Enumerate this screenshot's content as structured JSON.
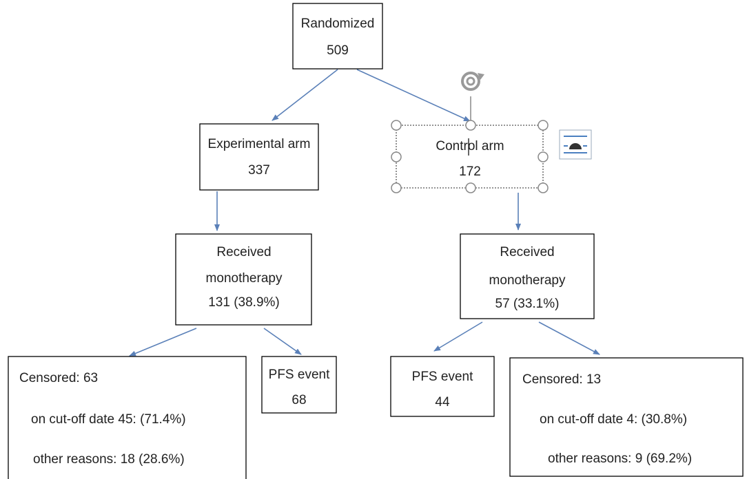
{
  "nodes": [
    {
      "lines": [
        "Randomized",
        "509"
      ]
    },
    {
      "lines": [
        "Experimental arm",
        "337"
      ]
    },
    {
      "lines": [
        "Control arm",
        "172"
      ]
    },
    {
      "lines": [
        "Received",
        "monotherapy",
        "131 (38.9%)"
      ]
    },
    {
      "lines": [
        "Received",
        "monotherapy",
        "57 (33.1%)"
      ]
    },
    {
      "lines": [
        "Censored: 63",
        "on cut-off date 45: (71.4%)",
        "other reasons: 18 (28.6%)"
      ]
    },
    {
      "lines": [
        "PFS event",
        "68"
      ]
    },
    {
      "lines": [
        "PFS event",
        "44"
      ]
    },
    {
      "lines": [
        "Censored: 13",
        "on cut-off date 4: (30.8%)",
        "other reasons: 9 (69.2%)"
      ]
    }
  ]
}
